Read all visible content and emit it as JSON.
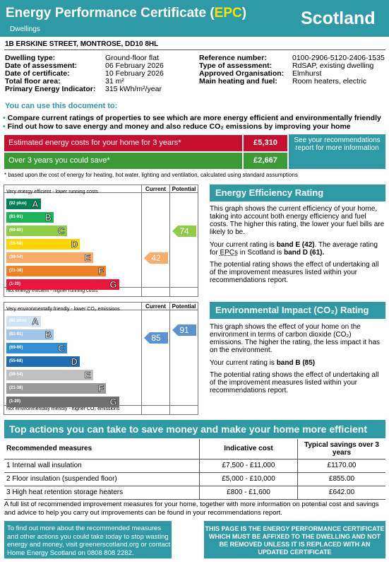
{
  "header": {
    "title_part1": "Energy Performance Certificate (",
    "title_epc": "EPC",
    "title_part2": ")",
    "subtitle": "Dwellings",
    "country": "Scotland"
  },
  "address": "1B ERSKINE STREET, MONTROSE, DD10 8HL",
  "details_left": [
    {
      "label": "Dwelling type:",
      "value": "Ground-floor flat"
    },
    {
      "label": "Date of assessment:",
      "value": "06 February 2026"
    },
    {
      "label": "Date of certificate:",
      "value": "10 February 2026"
    },
    {
      "label": "Total floor area:",
      "value": "31 m²"
    },
    {
      "label": "Primary Energy Indicator:",
      "value": "315 kWh/m²/year"
    }
  ],
  "details_right": [
    {
      "label": "Reference number:",
      "value": "0100-2906-5120-2406-1535"
    },
    {
      "label": "Type of assessment:",
      "value": "RdSAP, existing dwelling"
    },
    {
      "label": "Approved Organisation:",
      "value": "Elmhurst"
    },
    {
      "label": "Main heating and fuel:",
      "value": "Room heaters, electric"
    }
  ],
  "use_doc": {
    "title": "You can use this document to:",
    "bullet1": "Compare current ratings of properties to see which are more energy efficient and environmentally friendly",
    "bullet2": "Find out how to save energy and money and also reduce CO₂ emissions by improving your home"
  },
  "costs": {
    "row1_label": "Estimated energy costs for your home for 3 years*",
    "row1_value": "£5,310",
    "row1_color": "#c8102e",
    "row2_label": "Over 3 years you could save*",
    "row2_value": "£2,667",
    "row2_color": "#3a9b35",
    "see_text": "See your recommendations report for more information",
    "footnote": "* based upon the cost of energy for heating, hot water, lighting and ventilation, calculated using standard assumptions"
  },
  "ee_chart": {
    "top_label": "Very energy efficient - lower running costs",
    "bottom_label": "Not energy efficient - higher running costs",
    "current_label": "Current",
    "potential_label": "Potential",
    "bands": [
      {
        "range": "(92 plus)",
        "letter": "A",
        "color": "#008054"
      },
      {
        "range": "(81-91)",
        "letter": "B",
        "color": "#19b459"
      },
      {
        "range": "(69-80)",
        "letter": "C",
        "color": "#8dce46"
      },
      {
        "range": "(55-68)",
        "letter": "D",
        "color": "#ffd500"
      },
      {
        "range": "(39-54)",
        "letter": "E",
        "color": "#fcaa65"
      },
      {
        "range": "(21-38)",
        "letter": "F",
        "color": "#ef8023"
      },
      {
        "range": "(1-20)",
        "letter": "G",
        "color": "#e9153b"
      }
    ],
    "current": 42,
    "current_color": "#fcaa65",
    "potential": 74,
    "potential_color": "#8dce46"
  },
  "ei_chart": {
    "top_label": "Very environmentally friendly - lower CO₂ emissions",
    "bottom_label": "Not environmentally friendly - higher CO₂ emissions",
    "current_label": "Current",
    "potential_label": "Potential",
    "bands": [
      {
        "range": "(92 plus)",
        "letter": "A",
        "color": "#cfe2f3"
      },
      {
        "range": "(81-91)",
        "letter": "B",
        "color": "#a2c4e9"
      },
      {
        "range": "(69-80)",
        "letter": "C",
        "color": "#2f8fd6"
      },
      {
        "range": "(55-68)",
        "letter": "D",
        "color": "#1f6cb0"
      },
      {
        "range": "(39-54)",
        "letter": "E",
        "color": "#c0c0c0"
      },
      {
        "range": "(21-38)",
        "letter": "F",
        "color": "#9a9a9a"
      },
      {
        "range": "(1-20)",
        "letter": "G",
        "color": "#707070"
      }
    ],
    "current": 85,
    "current_color": "#5a93d0",
    "potential": 91,
    "potential_color": "#5a93d0"
  },
  "ee_panel": {
    "title": "Energy Efficiency Rating",
    "p1": "This graph shows the current efficiency of your home, taking into account both energy efficiency and fuel costs. The higher this rating, the lower your fuel bills are likely to be.",
    "p2a": "Your current rating is ",
    "p2b": "band E (42)",
    "p2c": ". The average rating for ",
    "p2d": "EPCs",
    "p2e": " in Scotland is ",
    "p2f": "band D (61).",
    "p3": "The potential rating shows the effect of undertaking all of the improvement measures listed within your recommendations report."
  },
  "ei_panel": {
    "title": "Environmental Impact (CO₂) Rating",
    "p1": "This graph shows the effect of your home on the environment in terms of carbon dioxide (CO₂) emissions. The higher the rating, the less impact it has on the environment.",
    "p2a": "Your current rating is ",
    "p2b": "band B (85)",
    "p3": "The potential rating shows the effect of undertaking all of the improvement measures listed within your recommendations report."
  },
  "actions": {
    "title": "Top actions you can take to save money and make your home more efficient",
    "col1": "Recommended measures",
    "col2": "Indicative cost",
    "col3": "Typical savings over 3 years",
    "rows": [
      {
        "measure": "1 Internal wall insulation",
        "cost": "£7,500 - £11,000",
        "saving": "£1170.00"
      },
      {
        "measure": "2 Floor insulation (suspended floor)",
        "cost": "£5,000 - £10,000",
        "saving": "£855.00"
      },
      {
        "measure": "3 High heat retention storage heaters",
        "cost": "£800 - £1,600",
        "saving": "£642.00"
      }
    ],
    "footnote": "A full list of recommended improvement measures for your home, together with more information on potential cost and savings and advice to help you carry out improvements can be found in your recommendations report."
  },
  "footer": {
    "left": "To find out more about the recommended measures and other actions you could take today to stop wasting energy and money, visit greenerscotland.org or contact Home Energy Scotland on 0808 808 2282.",
    "right": "THIS PAGE IS THE ENERGY PERFORMANCE CERTIFICATE WHICH MUST BE AFFIXED TO THE DWELLING AND NOT BE REMOVED UNLESS IT IS REPLACED WITH AN UPDATED CERTIFICATE"
  }
}
